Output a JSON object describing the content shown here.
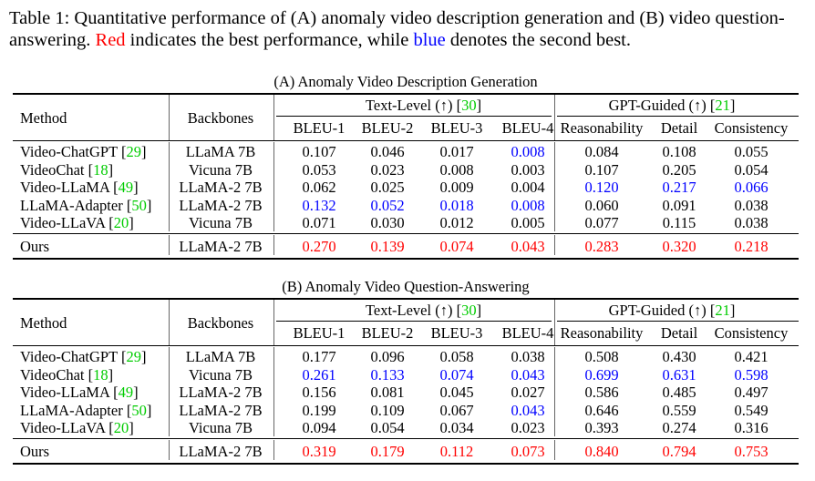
{
  "caption": {
    "part1": "Table 1: Quantitative performance of (A) anomaly video description generation and (B) video question-answering. ",
    "red_word": "Red",
    "part2": " indicates the best performance, while ",
    "blue_word": "blue",
    "part3": " denotes the second best."
  },
  "headers": {
    "method": "Method",
    "backbones": "Backbones",
    "text_level": "Text-Level (↑) [",
    "text_level_ref": "30",
    "gpt_guided": "GPT-Guided (↑) [",
    "gpt_guided_ref": "21",
    "close_bracket": "]",
    "metrics": [
      "BLEU-1",
      "BLEU-2",
      "BLEU-3",
      "BLEU-4",
      "Reasonability",
      "Detail",
      "Consistency"
    ]
  },
  "colors": {
    "best": "#ff0000",
    "second": "#0000ff",
    "cite": "#00cc00",
    "normal": "#000000"
  },
  "tables": [
    {
      "title": "(A) Anomaly Video Description Generation",
      "rows": [
        {
          "method": "Video-ChatGPT",
          "ref": "29",
          "backbone": "LLaMA 7B",
          "values": [
            "0.107",
            "0.046",
            "0.017",
            "0.008",
            "0.084",
            "0.108",
            "0.055"
          ],
          "marks": [
            "n",
            "n",
            "n",
            "s",
            "n",
            "n",
            "n"
          ]
        },
        {
          "method": "VideoChat",
          "ref": "18",
          "backbone": "Vicuna 7B",
          "values": [
            "0.053",
            "0.023",
            "0.008",
            "0.003",
            "0.107",
            "0.205",
            "0.054"
          ],
          "marks": [
            "n",
            "n",
            "n",
            "n",
            "n",
            "n",
            "n"
          ]
        },
        {
          "method": "Video-LLaMA",
          "ref": "49",
          "backbone": "LLaMA-2 7B",
          "values": [
            "0.062",
            "0.025",
            "0.009",
            "0.004",
            "0.120",
            "0.217",
            "0.066"
          ],
          "marks": [
            "n",
            "n",
            "n",
            "n",
            "s",
            "s",
            "s"
          ]
        },
        {
          "method": "LLaMA-Adapter",
          "ref": "50",
          "backbone": "LLaMA-2 7B",
          "values": [
            "0.132",
            "0.052",
            "0.018",
            "0.008",
            "0.060",
            "0.091",
            "0.038"
          ],
          "marks": [
            "s",
            "s",
            "s",
            "s",
            "n",
            "n",
            "n"
          ]
        },
        {
          "method": "Video-LLaVA",
          "ref": "20",
          "backbone": "Vicuna 7B",
          "values": [
            "0.071",
            "0.030",
            "0.012",
            "0.005",
            "0.077",
            "0.115",
            "0.038"
          ],
          "marks": [
            "n",
            "n",
            "n",
            "n",
            "n",
            "n",
            "n"
          ]
        }
      ],
      "ours": {
        "method": "Ours",
        "backbone": "LLaMA-2 7B",
        "values": [
          "0.270",
          "0.139",
          "0.074",
          "0.043",
          "0.283",
          "0.320",
          "0.218"
        ],
        "marks": [
          "b",
          "b",
          "b",
          "b",
          "b",
          "b",
          "b"
        ]
      }
    },
    {
      "title": "(B) Anomaly Video Question-Answering",
      "rows": [
        {
          "method": "Video-ChatGPT",
          "ref": "29",
          "backbone": "LLaMA 7B",
          "values": [
            "0.177",
            "0.096",
            "0.058",
            "0.038",
            "0.508",
            "0.430",
            "0.421"
          ],
          "marks": [
            "n",
            "n",
            "n",
            "n",
            "n",
            "n",
            "n"
          ]
        },
        {
          "method": "VideoChat",
          "ref": "18",
          "backbone": "Vicuna 7B",
          "values": [
            "0.261",
            "0.133",
            "0.074",
            "0.043",
            "0.699",
            "0.631",
            "0.598"
          ],
          "marks": [
            "s",
            "s",
            "s",
            "s",
            "s",
            "s",
            "s"
          ]
        },
        {
          "method": "Video-LLaMA",
          "ref": "49",
          "backbone": "LLaMA-2 7B",
          "values": [
            "0.156",
            "0.081",
            "0.045",
            "0.027",
            "0.586",
            "0.485",
            "0.497"
          ],
          "marks": [
            "n",
            "n",
            "n",
            "n",
            "n",
            "n",
            "n"
          ]
        },
        {
          "method": "LLaMA-Adapter",
          "ref": "50",
          "backbone": "LLaMA-2 7B",
          "values": [
            "0.199",
            "0.109",
            "0.067",
            "0.043",
            "0.646",
            "0.559",
            "0.549"
          ],
          "marks": [
            "n",
            "n",
            "n",
            "s",
            "n",
            "n",
            "n"
          ]
        },
        {
          "method": "Video-LLaVA",
          "ref": "20",
          "backbone": "Vicuna 7B",
          "values": [
            "0.094",
            "0.054",
            "0.034",
            "0.023",
            "0.393",
            "0.274",
            "0.316"
          ],
          "marks": [
            "n",
            "n",
            "n",
            "n",
            "n",
            "n",
            "n"
          ]
        }
      ],
      "ours": {
        "method": "Ours",
        "backbone": "LLaMA-2 7B",
        "values": [
          "0.319",
          "0.179",
          "0.112",
          "0.073",
          "0.840",
          "0.794",
          "0.753"
        ],
        "marks": [
          "b",
          "b",
          "b",
          "b",
          "b",
          "b",
          "b"
        ]
      }
    }
  ]
}
